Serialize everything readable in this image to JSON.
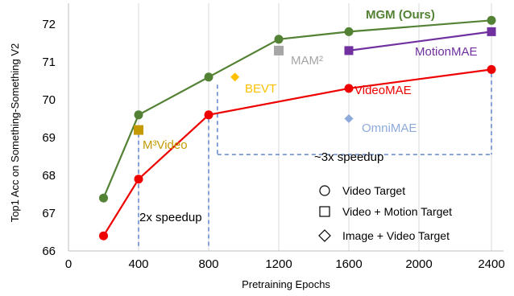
{
  "chart_data": {
    "type": "line",
    "xlabel": "Pretraining Epochs",
    "ylabel": "Top1 Acc on Something-Something  V2",
    "x_ticks": [
      "0",
      "400",
      "800",
      "1200",
      "1600",
      "2000",
      "2400"
    ],
    "y_ticks": [
      "66",
      "67",
      "68",
      "69",
      "70",
      "71",
      "72"
    ],
    "ylim": [
      66,
      72.4
    ],
    "grid": "vertical",
    "series": [
      {
        "name": "MGM (Ours)",
        "color": "#548235",
        "marker": "circle",
        "x": [
          200,
          400,
          800,
          1200,
          1600,
          2400
        ],
        "y": [
          67.4,
          69.6,
          70.6,
          71.6,
          71.8,
          72.1
        ]
      },
      {
        "name": "VideoMAE",
        "color": "#ee0000",
        "marker": "circle",
        "x": [
          200,
          400,
          800,
          1600,
          2400
        ],
        "y": [
          66.4,
          67.9,
          69.6,
          70.3,
          70.8
        ]
      },
      {
        "name": "MotionMAE",
        "color": "#7030a0",
        "marker": "square",
        "x": [
          1600,
          2400
        ],
        "y": [
          71.3,
          71.8
        ]
      }
    ],
    "points": [
      {
        "name": "M³Video",
        "color": "#c49a00",
        "marker": "square",
        "x": 400,
        "y": 69.2
      },
      {
        "name": "MAM²",
        "color": "#a6a6a6",
        "marker": "square",
        "x": 1200,
        "y": 71.3
      },
      {
        "name": "BEVT",
        "color": "#ffc000",
        "marker": "diamond",
        "x": 950,
        "y": 70.6
      },
      {
        "name": "OmniMAE",
        "color": "#8eaadb",
        "marker": "diamond",
        "x": 1600,
        "y": 69.5
      }
    ],
    "annotations": [
      "2x speedup",
      "~3x speedup"
    ],
    "legend": [
      {
        "marker": "circle",
        "label": "Video Target"
      },
      {
        "marker": "square",
        "label": "Video + Motion Target"
      },
      {
        "marker": "diamond",
        "label": "Image + Video Target"
      }
    ],
    "legend_position": "bottom-right"
  }
}
